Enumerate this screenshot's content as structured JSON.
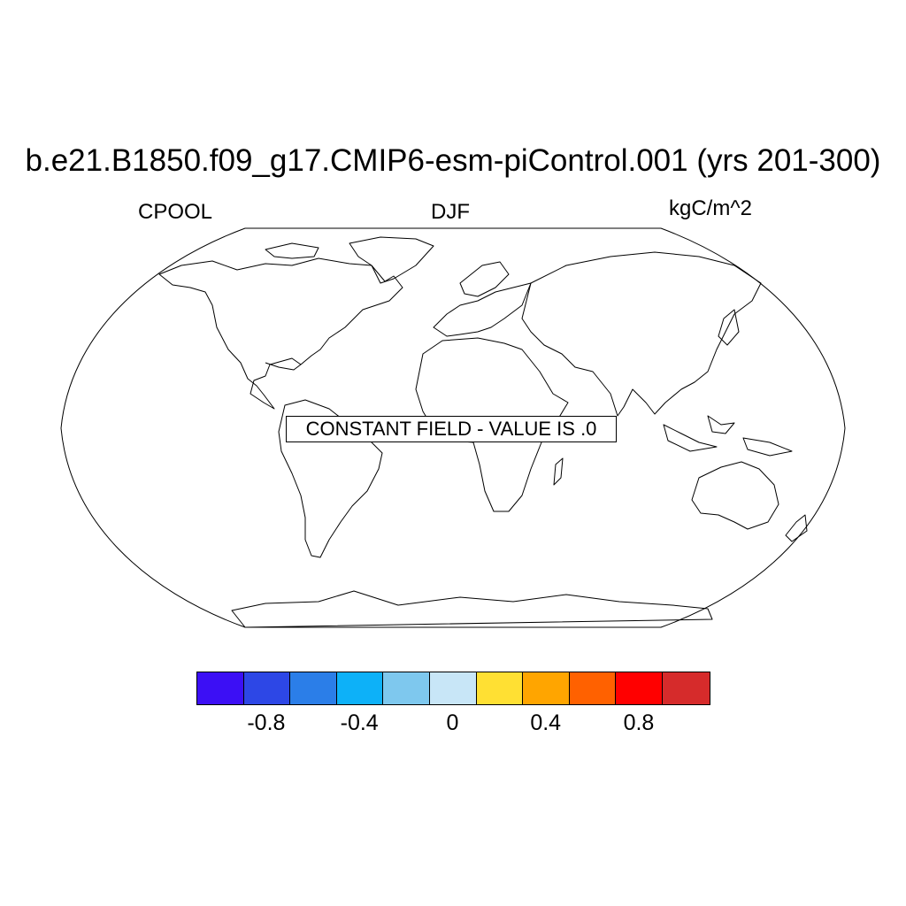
{
  "figure": {
    "title": "b.e21.B1850.f09_g17.CMIP6-esm-piControl.001 (yrs 201-300)",
    "variable": "CPOOL",
    "season": "DJF",
    "units": "kgC/m^2",
    "message": "CONSTANT FIELD - VALUE IS .0"
  },
  "map": {
    "projection": "Robinson",
    "coastlines": true,
    "field_value": 0.0
  },
  "colorbar": {
    "colors": [
      "#3c0ff5",
      "#2d47e6",
      "#2b7ee8",
      "#0db1f8",
      "#7ec8ee",
      "#c8e6f7",
      "#ffe033",
      "#ffa500",
      "#ff6100",
      "#ff0000",
      "#d62b2b"
    ],
    "tick_labels": [
      "-0.8",
      "-0.4",
      "0",
      "0.4",
      "0.8"
    ],
    "tick_values": [
      -0.8,
      -0.4,
      0,
      0.4,
      0.8
    ],
    "range": [
      -1.0,
      1.0
    ]
  }
}
